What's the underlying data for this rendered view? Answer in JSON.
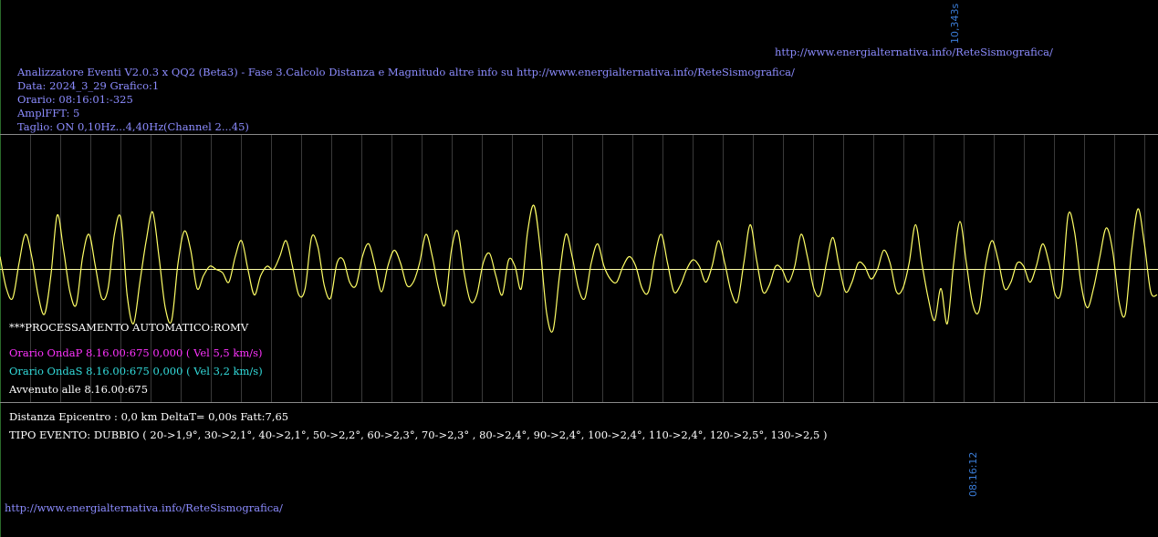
{
  "header": {
    "title": "Analizzatore Eventi V2.0.3 x QQ2 (Beta3) - Fase 3.Calcolo Distanza e Magnitudo altre info su http://www.energialternativa.info/ReteSismografica/",
    "date": "Data: 2024_3_29 Grafico:1",
    "time": "Orario: 08:16:01:-325",
    "ampl": "AmplFFT: 5",
    "cut": "Taglio: ON 0,10Hz...4,40Hz",
    "channel": "(Channel 2...45)",
    "url_top": "http://www.energialternativa.info/ReteSismografica/",
    "scale_label": "10,343s"
  },
  "info": {
    "processing": "***PROCESSAMENTO AUTOMATICO:ROMV",
    "wave_p": "Orario OndaP 8.16.00:675  0,000 ( Vel 5,5 km/s)",
    "wave_s": "Orario OndaS 8.16.00:675  0,000 ( Vel 3,2 km/s)",
    "occurred": "Avvenuto alle 8.16.00:675",
    "distance": "Distanza Epicentro : 0,0 km DeltaT= 0,00s  Fatt:7,65",
    "event_type": "TIPO EVENTO: DUBBIO ( 20->1,9°, 30->2,1°, 40->2,1°, 50->2,2°, 60->2,3°, 70->2,3° , 80->2,4°, 90->2,4°, 100->2,4°, 110->2,4°, 120->2,5°, 130->2,5 )",
    "time_marker": "08:16:12",
    "url_bottom": "http://www.energialternativa.info/ReteSismografica/"
  },
  "colors": {
    "background": "#000000",
    "trace": "#ffff66",
    "baseline": "#ffffaa",
    "grid": "#3a3a3a",
    "frame": "#8a8a8a",
    "wave_p": "#ff33ff",
    "wave_s": "#33dddd",
    "text_blue": "#8c8cff",
    "marker_blue": "#3a7bd5"
  },
  "chart_data": {
    "type": "line",
    "series": [
      {
        "values": [
          0.2,
          -0.3,
          -0.45,
          0.1,
          0.55,
          0.2,
          -0.4,
          -0.7,
          -0.1,
          0.85,
          0.3,
          -0.35,
          -0.55,
          0.2,
          0.55,
          0.05,
          -0.45,
          -0.3,
          0.55,
          0.8,
          -0.4,
          -0.85,
          -0.2,
          0.45,
          0.9,
          0.2,
          -0.6,
          -0.8,
          0.1,
          0.6,
          0.3,
          -0.3,
          -0.1,
          0.05,
          0.0,
          -0.05,
          -0.2,
          0.2,
          0.45,
          0.0,
          -0.4,
          -0.1,
          0.05,
          0.0,
          0.2,
          0.45,
          0.05,
          -0.4,
          -0.3,
          0.5,
          0.35,
          -0.25,
          -0.45,
          0.1,
          0.15,
          -0.2,
          -0.25,
          0.2,
          0.4,
          0.05,
          -0.35,
          0.05,
          0.3,
          0.1,
          -0.25,
          -0.2,
          0.1,
          0.55,
          0.2,
          -0.3,
          -0.55,
          0.3,
          0.6,
          -0.05,
          -0.5,
          -0.4,
          0.1,
          0.25,
          -0.1,
          -0.4,
          0.15,
          0.05,
          -0.3,
          0.6,
          1.0,
          0.3,
          -0.7,
          -0.95,
          -0.1,
          0.55,
          0.2,
          -0.3,
          -0.45,
          0.1,
          0.4,
          0.05,
          -0.15,
          -0.2,
          0.05,
          0.2,
          0.05,
          -0.3,
          -0.35,
          0.2,
          0.55,
          0.1,
          -0.35,
          -0.25,
          0.0,
          0.15,
          0.05,
          -0.2,
          0.05,
          0.45,
          0.1,
          -0.35,
          -0.5,
          0.1,
          0.7,
          0.15,
          -0.35,
          -0.25,
          0.05,
          0.0,
          -0.2,
          0.05,
          0.55,
          0.2,
          -0.3,
          -0.4,
          0.1,
          0.5,
          0.05,
          -0.35,
          -0.2,
          0.1,
          0.05,
          -0.15,
          0.0,
          0.3,
          0.1,
          -0.35,
          -0.3,
          0.1,
          0.7,
          0.1,
          -0.45,
          -0.8,
          -0.3,
          -0.85,
          0.1,
          0.75,
          0.1,
          -0.55,
          -0.65,
          0.05,
          0.45,
          0.15,
          -0.3,
          -0.2,
          0.1,
          0.05,
          -0.2,
          0.05,
          0.4,
          0.1,
          -0.4,
          -0.3,
          0.85,
          0.6,
          -0.2,
          -0.6,
          -0.3,
          0.2,
          0.65,
          0.3,
          -0.5,
          -0.7,
          0.3,
          0.95,
          0.4,
          -0.35,
          -0.4
        ]
      }
    ],
    "ylim": [
      -1.1,
      1.1
    ],
    "grid": true
  }
}
